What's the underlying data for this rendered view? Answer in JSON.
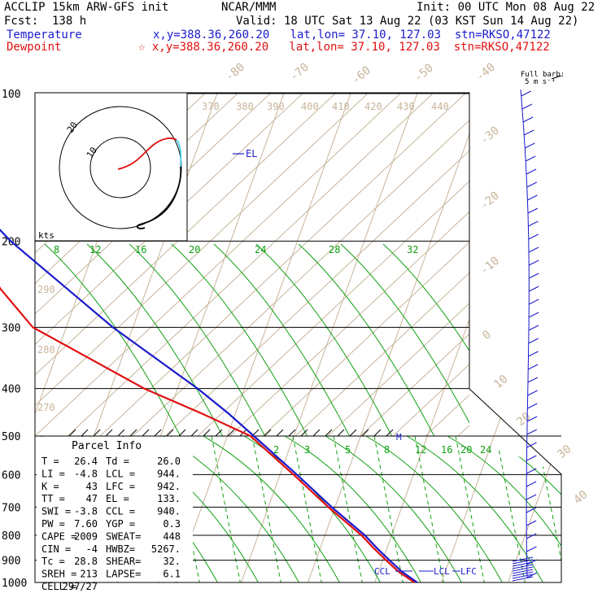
{
  "header": {
    "model": "ACCLIP 15km ARW-GFS init",
    "org": "NCAR/MMM",
    "init": "Init: 00 UTC Mon 08 Aug 22",
    "fcst": "Fcst:  138 h",
    "valid": "Valid: 18 UTC Sat 13 Aug 22 (03 KST Sun 14 Aug 22)",
    "temp_label": "Temperature",
    "temp_loc": "x,y=388.36,260.20   lat,lon= 37.10, 127.03  stn=RKSO,47122",
    "dew_label": "Dewpoint",
    "dew_loc": "☆ x,y=388.36,260.20   lat,lon= 37.10, 127.03  stn=RKSO,47122"
  },
  "colors": {
    "temperature": "#1a1acc",
    "dewpoint": "#e01010",
    "isotherm": "#c8b49a",
    "mixing_ratio": "#10a010",
    "hodo_black": "#000000",
    "hodo_cyan": "#40c8e0"
  },
  "chart_data": {
    "type": "skew-t",
    "pressure_levels": [
      100,
      200,
      300,
      400,
      500,
      600,
      700,
      800,
      900,
      1000
    ],
    "isotherm_labels": [
      "-80",
      "-70",
      "-60",
      "-50",
      "-40",
      "-30",
      "-20",
      "-10",
      "0",
      "10",
      "20",
      "30",
      "40"
    ],
    "theta_labels_upper": [
      "370",
      "380",
      "390",
      "400",
      "410",
      "420",
      "430",
      "440"
    ],
    "theta_labels_left": [
      "290",
      "280",
      "270"
    ],
    "theta_e_labels": [
      "8",
      "12",
      "16",
      "20",
      "24",
      "28",
      "32"
    ],
    "mixing_ratio_labels": [
      "2",
      "3",
      "5",
      "8",
      "12",
      "16",
      "20",
      "24"
    ],
    "markers": {
      "el": "EL",
      "ccl": "CCL",
      "lcl": "LCL",
      "lfc": "LFC",
      "m": "M"
    },
    "temperature": {
      "name": "Temperature",
      "points": [
        [
          1000,
          26.4
        ],
        [
          950,
          23.5
        ],
        [
          900,
          21
        ],
        [
          850,
          18.5
        ],
        [
          800,
          16
        ],
        [
          700,
          9.5
        ],
        [
          600,
          2.5
        ],
        [
          500,
          -6
        ],
        [
          450,
          -11
        ],
        [
          400,
          -17
        ],
        [
          300,
          -33
        ],
        [
          250,
          -42
        ],
        [
          200,
          -53
        ],
        [
          150,
          -65
        ],
        [
          135,
          -71
        ],
        [
          120,
          -72
        ],
        [
          100,
          -75
        ]
      ]
    },
    "dewpoint": {
      "name": "Dewpoint",
      "points": [
        [
          1000,
          26.0
        ],
        [
          950,
          23
        ],
        [
          900,
          20.5
        ],
        [
          850,
          18
        ],
        [
          800,
          15.5
        ],
        [
          700,
          9
        ],
        [
          600,
          2
        ],
        [
          500,
          -6.5
        ],
        [
          450,
          -15
        ],
        [
          400,
          -25
        ],
        [
          300,
          -45
        ],
        [
          250,
          -52
        ],
        [
          200,
          -58
        ],
        [
          150,
          -65
        ],
        [
          130,
          -70
        ],
        [
          100,
          -74
        ]
      ]
    }
  },
  "hodograph": {
    "units": "kts",
    "ring_labels": [
      "10",
      "20"
    ]
  },
  "wind_barbs": {
    "title": "Full barb:",
    "unit": "5 m s⁻¹"
  },
  "parcel_info": {
    "title": "Parcel Info",
    "rows": [
      [
        "T  =",
        "26.4",
        "Td =",
        "26.0"
      ],
      [
        "LI =",
        "-4.8",
        "LCL =",
        "944."
      ],
      [
        "K  =",
        "43",
        "LFC =",
        "942."
      ],
      [
        "TT =",
        "47",
        "EL =",
        "133."
      ],
      [
        "SWI =",
        "-3.8",
        "CCL =",
        "940."
      ],
      [
        "PW =",
        "7.60",
        "YGP =",
        "0.3"
      ],
      [
        "CAPE =",
        "2009",
        "SWEAT=",
        "448"
      ],
      [
        "CIN =",
        "-4",
        "HWBZ=",
        "5267."
      ],
      [
        "Tc =",
        "28.8",
        "SHEAR=",
        "32."
      ],
      [
        "SREH =",
        "213",
        "LAPSE=",
        "6.1"
      ],
      [
        "CELL =",
        "297/27",
        "",
        ""
      ]
    ]
  }
}
